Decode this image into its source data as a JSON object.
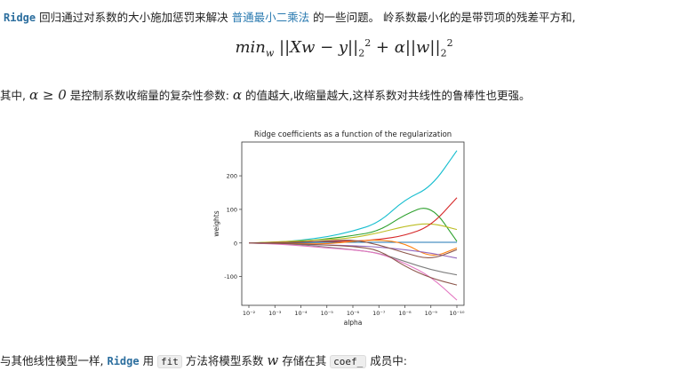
{
  "paragraph1": {
    "ridge_code": "Ridge",
    "text_a": " 回归通过对系数的大小施加惩罚来解决 ",
    "link_text": "普通最小二乘法",
    "text_b": " 的一些问题。 岭系数最小化的是带罚项的残差平方和,"
  },
  "formula": {
    "min": "min",
    "sub": "w",
    "expr_left": "||Xw − y||",
    "sub2": "2",
    "sup2": "2",
    "plus_alpha": " + α||w||",
    "sub3": "2",
    "sup3": "2"
  },
  "paragraph2": {
    "text_a": "其中,",
    "math": "α ≥ 0",
    "text_b": " 是控制系数收缩量的复杂性参数:",
    "math2": "α",
    "text_c": " 的值越大,收缩量越大,这样系数对共线性的鲁棒性也更强。"
  },
  "paragraph3": {
    "text_a": "与其他线性模型一样,",
    "ridge_code": "Ridge",
    "text_b": " 用 ",
    "fit_code": "fit",
    "text_c": " 方法将模型系数 ",
    "math": "w",
    "text_d": " 存储在其 ",
    "coef_code": "coef_",
    "text_e": " 成员中:"
  },
  "chart_data": {
    "type": "line",
    "title": "Ridge coefficients as a function of the regularization",
    "xlabel": "alpha",
    "ylabel": "weights",
    "x_scale": "log",
    "x_reversed": true,
    "x": [
      0.01,
      0.001,
      0.0001,
      1e-05,
      1e-06,
      1e-07,
      1e-08,
      1e-09,
      1e-10
    ],
    "x_tick_labels": [
      "10⁻²",
      "10⁻³",
      "10⁻⁴",
      "10⁻⁵",
      "10⁻⁶",
      "10⁻⁷",
      "10⁻⁸",
      "10⁻⁹",
      "10⁻¹⁰"
    ],
    "y_ticks": [
      200,
      100,
      0,
      -100
    ],
    "ylim": [
      -175,
      290
    ],
    "series": [
      {
        "color": "#17becf",
        "values": [
          0,
          2,
          8,
          18,
          35,
          60,
          130,
          165,
          275
        ]
      },
      {
        "color": "#2ca02c",
        "values": [
          0,
          2,
          5,
          12,
          22,
          35,
          85,
          115,
          5
        ]
      },
      {
        "color": "#bcbd22",
        "values": [
          0,
          3,
          7,
          10,
          15,
          30,
          50,
          60,
          40
        ]
      },
      {
        "color": "#d62728",
        "values": [
          0,
          1,
          3,
          5,
          5,
          10,
          22,
          50,
          135
        ]
      },
      {
        "color": "#1f77b4",
        "values": [
          0,
          0,
          1,
          2,
          2,
          2,
          2,
          2,
          2
        ]
      },
      {
        "color": "#ff7f0e",
        "values": [
          0,
          -1,
          -2,
          -3,
          5,
          10,
          0,
          -45,
          -15
        ]
      },
      {
        "color": "#9467bd",
        "values": [
          0,
          -2,
          -4,
          -6,
          -8,
          -12,
          -20,
          -30,
          -45
        ]
      },
      {
        "color": "#8c564b",
        "values": [
          0,
          1,
          2,
          6,
          10,
          -5,
          -30,
          -50,
          -20
        ]
      },
      {
        "color": "#7f7f7f",
        "values": [
          0,
          -2,
          -5,
          -12,
          -20,
          -30,
          -55,
          -80,
          -95
        ]
      },
      {
        "color": "#e377c2",
        "values": [
          0,
          -3,
          -8,
          -15,
          -20,
          -30,
          -60,
          -100,
          -170
        ]
      },
      {
        "color": "#8c564b",
        "values": [
          0,
          -1,
          -3,
          -6,
          -10,
          -20,
          -70,
          -105,
          -125
        ]
      }
    ]
  }
}
